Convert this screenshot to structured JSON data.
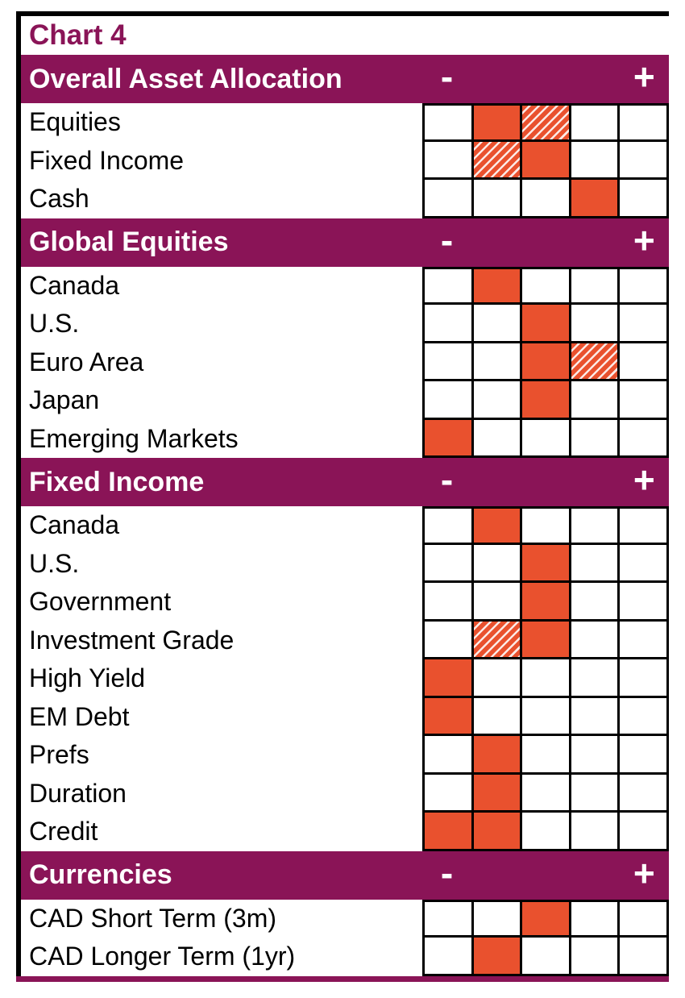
{
  "title": "Chart 4",
  "colors": {
    "section_header_bg": "#8A1457",
    "section_header_text": "#FFFFFF",
    "title_text": "#8A1457",
    "solid_cell": "#E9512E",
    "grid_line": "#000000",
    "row_text": "#000000"
  },
  "chart_data": {
    "type": "heatmap",
    "title": "Chart 4",
    "columns": 5,
    "scale": {
      "min_label": "-",
      "max_label": "+"
    },
    "cell_fill_values": [
      "empty",
      "solid",
      "hatched"
    ],
    "sections": [
      {
        "header": "Overall Asset Allocation",
        "rows": [
          {
            "label": "Equities",
            "cells": [
              "empty",
              "solid",
              "hatched",
              "empty",
              "empty"
            ]
          },
          {
            "label": "Fixed Income",
            "cells": [
              "empty",
              "hatched",
              "solid",
              "empty",
              "empty"
            ]
          },
          {
            "label": "Cash",
            "cells": [
              "empty",
              "empty",
              "empty",
              "solid",
              "empty"
            ]
          }
        ]
      },
      {
        "header": "Global Equities",
        "rows": [
          {
            "label": "Canada",
            "cells": [
              "empty",
              "solid",
              "empty",
              "empty",
              "empty"
            ]
          },
          {
            "label": "U.S.",
            "cells": [
              "empty",
              "empty",
              "solid",
              "empty",
              "empty"
            ]
          },
          {
            "label": "Euro Area",
            "cells": [
              "empty",
              "empty",
              "solid",
              "hatched",
              "empty"
            ]
          },
          {
            "label": "Japan",
            "cells": [
              "empty",
              "empty",
              "solid",
              "empty",
              "empty"
            ]
          },
          {
            "label": "Emerging Markets",
            "cells": [
              "solid",
              "empty",
              "empty",
              "empty",
              "empty"
            ]
          }
        ]
      },
      {
        "header": "Fixed Income",
        "rows": [
          {
            "label": "Canada",
            "cells": [
              "empty",
              "solid",
              "empty",
              "empty",
              "empty"
            ]
          },
          {
            "label": "U.S.",
            "cells": [
              "empty",
              "empty",
              "solid",
              "empty",
              "empty"
            ]
          },
          {
            "label": "Government",
            "cells": [
              "empty",
              "empty",
              "solid",
              "empty",
              "empty"
            ]
          },
          {
            "label": "Investment Grade",
            "cells": [
              "empty",
              "hatched",
              "solid",
              "empty",
              "empty"
            ]
          },
          {
            "label": "High Yield",
            "cells": [
              "solid",
              "empty",
              "empty",
              "empty",
              "empty"
            ]
          },
          {
            "label": "EM Debt",
            "cells": [
              "solid",
              "empty",
              "empty",
              "empty",
              "empty"
            ]
          },
          {
            "label": "Prefs",
            "cells": [
              "empty",
              "solid",
              "empty",
              "empty",
              "empty"
            ]
          },
          {
            "label": "Duration",
            "cells": [
              "empty",
              "solid",
              "empty",
              "empty",
              "empty"
            ]
          },
          {
            "label": "Credit",
            "cells": [
              "solid",
              "solid",
              "empty",
              "empty",
              "empty"
            ]
          }
        ]
      },
      {
        "header": "Currencies",
        "rows": [
          {
            "label": "CAD Short Term (3m)",
            "cells": [
              "empty",
              "empty",
              "solid",
              "empty",
              "empty"
            ]
          },
          {
            "label": "CAD Longer Term (1yr)",
            "cells": [
              "empty",
              "solid",
              "empty",
              "empty",
              "empty"
            ]
          }
        ]
      }
    ]
  }
}
